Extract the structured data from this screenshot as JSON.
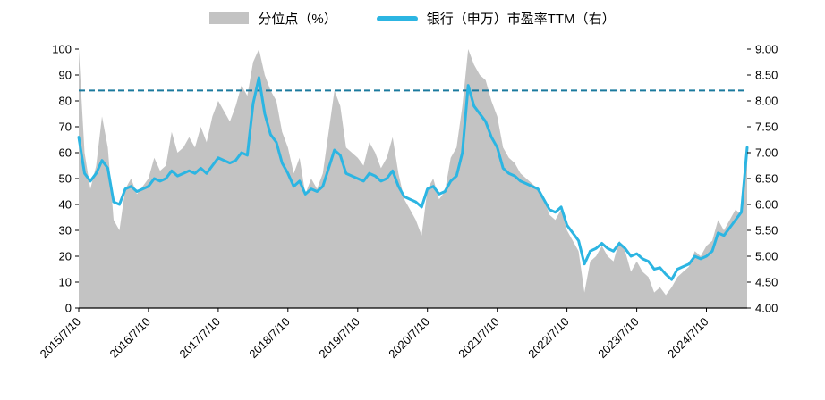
{
  "legend": {
    "series1": "分位点（%）",
    "series2": "银行（申万）市盈率TTM（右）"
  },
  "colors": {
    "area": "#c3c3c3",
    "line": "#2cb5e2",
    "reference": "#1b7a9e",
    "axis": "#000000"
  },
  "chart_data": {
    "type": "area+line",
    "title": "",
    "x_start": "2015/7",
    "x_step": "1 month",
    "x_tick_labels": [
      "2015/7/10",
      "2016/7/10",
      "2017/7/10",
      "2018/7/10",
      "2019/7/10",
      "2020/7/10",
      "2021/7/10",
      "2022/7/10",
      "2023/7/10",
      "2024/7/10"
    ],
    "x_tick_indices": [
      0,
      12,
      24,
      36,
      48,
      60,
      72,
      84,
      96,
      108
    ],
    "left_axis": {
      "min": 0,
      "max": 100,
      "ticks": [
        0,
        10,
        20,
        30,
        40,
        50,
        60,
        70,
        80,
        90,
        100
      ]
    },
    "right_axis": {
      "min": 4,
      "max": 9,
      "ticks": [
        "4.00",
        "4.50",
        "5.00",
        "5.50",
        "6.00",
        "6.50",
        "7.00",
        "7.50",
        "8.00",
        "8.50",
        "9.00"
      ]
    },
    "reference_line": {
      "axis": "right",
      "value": 8.2,
      "style": "dashed"
    },
    "legend_position": "top-center",
    "grid": false,
    "series": [
      {
        "name": "分位点（%）",
        "axis": "left",
        "type": "area",
        "values": [
          100,
          60,
          46,
          55,
          74,
          62,
          34,
          30,
          46,
          50,
          44,
          47,
          50,
          58,
          53,
          55,
          68,
          60,
          62,
          66,
          62,
          70,
          64,
          74,
          80,
          76,
          72,
          78,
          86,
          82,
          95,
          100,
          90,
          84,
          80,
          68,
          62,
          52,
          58,
          44,
          50,
          46,
          52,
          68,
          84,
          78,
          62,
          60,
          58,
          55,
          64,
          60,
          54,
          58,
          66,
          52,
          42,
          38,
          34,
          28,
          46,
          50,
          42,
          45,
          58,
          62,
          78,
          100,
          94,
          90,
          88,
          80,
          74,
          62,
          58,
          56,
          52,
          50,
          48,
          46,
          42,
          36,
          34,
          38,
          30,
          26,
          22,
          6,
          18,
          20,
          24,
          20,
          18,
          26,
          22,
          14,
          18,
          14,
          12,
          6,
          8,
          5,
          8,
          12,
          14,
          16,
          22,
          20,
          24,
          26,
          34,
          30,
          34,
          38,
          36,
          62
        ]
      },
      {
        "name": "银行（申万）市盈率TTM（右）",
        "axis": "right",
        "type": "line",
        "values": [
          7.3,
          6.6,
          6.45,
          6.6,
          6.85,
          6.7,
          6.05,
          6.0,
          6.3,
          6.35,
          6.25,
          6.3,
          6.35,
          6.5,
          6.45,
          6.5,
          6.65,
          6.55,
          6.6,
          6.65,
          6.6,
          6.7,
          6.6,
          6.75,
          6.9,
          6.85,
          6.8,
          6.85,
          7.0,
          6.95,
          7.95,
          8.45,
          7.75,
          7.35,
          7.2,
          6.8,
          6.6,
          6.35,
          6.45,
          6.2,
          6.3,
          6.25,
          6.35,
          6.7,
          7.05,
          6.95,
          6.6,
          6.55,
          6.5,
          6.45,
          6.6,
          6.55,
          6.45,
          6.5,
          6.65,
          6.35,
          6.15,
          6.1,
          6.05,
          5.95,
          6.3,
          6.35,
          6.2,
          6.25,
          6.45,
          6.55,
          7.0,
          8.3,
          7.9,
          7.75,
          7.6,
          7.3,
          7.1,
          6.7,
          6.6,
          6.55,
          6.45,
          6.4,
          6.35,
          6.3,
          6.1,
          5.9,
          5.85,
          5.95,
          5.6,
          5.45,
          5.3,
          4.85,
          5.1,
          5.15,
          5.25,
          5.15,
          5.1,
          5.25,
          5.15,
          5.0,
          5.05,
          4.95,
          4.9,
          4.75,
          4.78,
          4.65,
          4.55,
          4.75,
          4.8,
          4.85,
          5.0,
          4.95,
          5.0,
          5.1,
          5.45,
          5.4,
          5.55,
          5.7,
          5.85,
          7.1
        ]
      }
    ]
  }
}
